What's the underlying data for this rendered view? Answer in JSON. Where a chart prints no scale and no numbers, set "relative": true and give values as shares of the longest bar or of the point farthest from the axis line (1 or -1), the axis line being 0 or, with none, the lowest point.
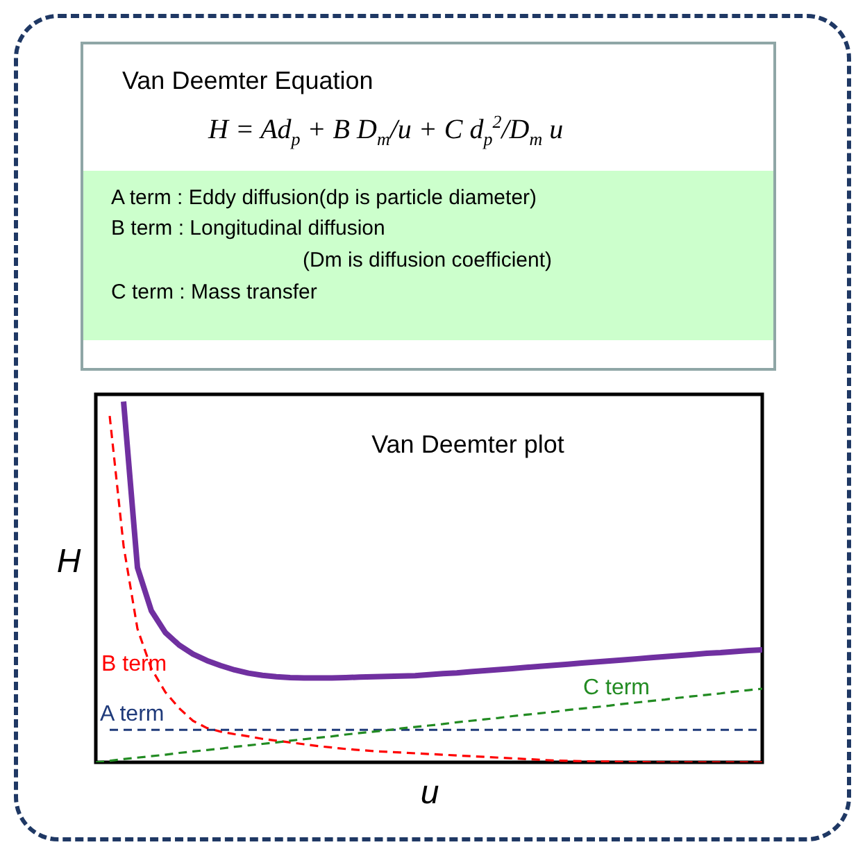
{
  "chart_data": {
    "type": "line",
    "title": "Van Deemter plot",
    "xlabel": "u",
    "ylabel": "H",
    "relative": true,
    "grid": false,
    "categories": [
      null,
      null,
      null,
      null,
      null,
      null,
      null,
      null,
      null,
      null,
      null,
      null,
      null,
      null,
      null,
      null,
      null,
      null,
      null,
      null,
      null,
      null,
      null,
      null,
      null,
      null,
      null,
      null,
      null,
      null,
      null,
      null,
      null,
      null,
      null,
      null,
      null,
      null,
      null,
      null,
      null,
      null,
      null,
      null,
      null,
      null,
      null,
      null,
      null
    ],
    "annotations": [
      "Van Deemter Equation",
      "H = Ad$_{p}$ + B D$_{m}$/u + C d$_{p}$$^{2}$/D$_{m}$ u",
      "A term : Eddy diffusion(dp is particle diameter)",
      "B term : Longitudinal diffusion",
      "(Dm is diffusion coefficient)",
      "C term : Mass transfer"
    ],
    "series": [
      {
        "color": "#7030a0",
        "line_style": "solid",
        "values": [
          null,
          null,
          1.0,
          0.54,
          0.42,
          0.36,
          0.325,
          0.3,
          0.282,
          0.268,
          0.256,
          0.247,
          0.241,
          0.237,
          0.235,
          0.234,
          0.234,
          0.234,
          0.235,
          0.236,
          0.237,
          0.238,
          0.239,
          0.24,
          0.243,
          0.246,
          0.248,
          0.251,
          0.254,
          0.257,
          0.26,
          0.263,
          0.266,
          0.269,
          0.272,
          0.275,
          0.278,
          0.281,
          0.284,
          0.287,
          0.29,
          0.293,
          0.296,
          0.299,
          0.302,
          0.304,
          0.307,
          0.31,
          0.312
        ]
      },
      {
        "name": "B term",
        "color": "#ff0000",
        "line_style": "dashed",
        "values": [
          null,
          0.96,
          0.6,
          0.37,
          0.26,
          0.195,
          0.15,
          0.115,
          0.095,
          0.085,
          0.078,
          0.072,
          0.065,
          0.06,
          0.055,
          0.05,
          0.045,
          0.041,
          0.037,
          0.034,
          0.031,
          0.029,
          0.027,
          0.025,
          0.023,
          0.021,
          0.019,
          0.017,
          0.015,
          0.013,
          0.011,
          0.009,
          0.007,
          0.005,
          0.004,
          0.003,
          0.002,
          0.002,
          0.001,
          0.001,
          0,
          0,
          0,
          0,
          0,
          0,
          0,
          0,
          0
        ]
      },
      {
        "name": "A term",
        "color": "#1f3a7a",
        "line_style": "dashed",
        "values": [
          null,
          0.09,
          0.09,
          0.09,
          0.09,
          0.09,
          0.09,
          0.09,
          0.09,
          0.09,
          0.09,
          0.09,
          0.09,
          0.09,
          0.09,
          0.09,
          0.09,
          0.09,
          0.09,
          0.09,
          0.09,
          0.09,
          0.09,
          0.09,
          0.09,
          0.09,
          0.09,
          0.09,
          0.09,
          0.09,
          0.09,
          0.09,
          0.09,
          0.09,
          0.09,
          0.09,
          0.09,
          0.09,
          0.09,
          0.09,
          0.09,
          0.09,
          0.09,
          0.09,
          0.09,
          0.09,
          0.09,
          0.09,
          0.09
        ]
      },
      {
        "name": "C term",
        "color": "#228b22",
        "line_style": "dashed",
        "values": [
          0,
          0.004,
          0.009,
          0.013,
          0.017,
          0.021,
          0.026,
          0.03,
          0.034,
          0.038,
          0.043,
          0.047,
          0.051,
          0.055,
          0.06,
          0.064,
          0.068,
          0.072,
          0.077,
          0.081,
          0.085,
          0.089,
          0.094,
          0.098,
          0.102,
          0.106,
          0.111,
          0.115,
          0.119,
          0.123,
          0.128,
          0.132,
          0.136,
          0.14,
          0.145,
          0.149,
          0.153,
          0.157,
          0.162,
          0.166,
          0.17,
          0.174,
          0.179,
          0.183,
          0.187,
          0.191,
          0.196,
          0.2,
          0.204
        ]
      }
    ]
  }
}
